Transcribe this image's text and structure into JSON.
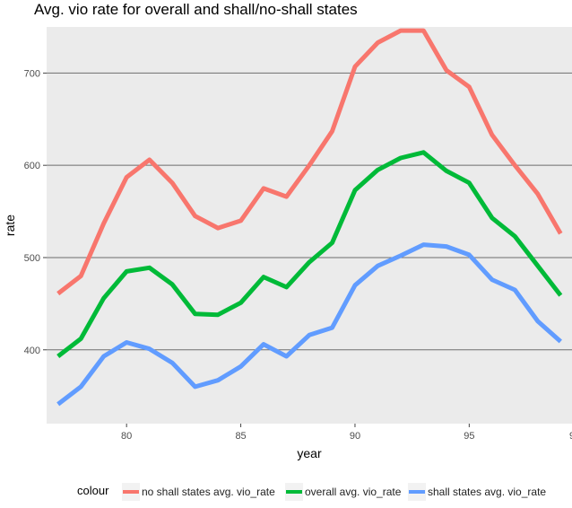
{
  "chart_data": {
    "type": "line",
    "title": "Avg. vio rate for overall and shall/no-shall states",
    "xlabel": "year",
    "ylabel": "rate",
    "xlim": [
      76.5,
      99.5
    ],
    "ylim": [
      320,
      750
    ],
    "x_ticks": [
      80,
      85,
      90,
      95
    ],
    "x_tick_labels": [
      "80",
      "85",
      "90",
      "95"
    ],
    "x_tick_partial": "9",
    "y_ticks": [
      400,
      500,
      600,
      700
    ],
    "y_tick_labels": [
      "400",
      "500",
      "600",
      "700"
    ],
    "grid": true,
    "legend_position": "bottom",
    "legend_title": "colour",
    "x": [
      77,
      78,
      79,
      80,
      81,
      82,
      83,
      84,
      85,
      86,
      87,
      88,
      89,
      90,
      91,
      92,
      93,
      94,
      95,
      96,
      97,
      98,
      99
    ],
    "series": [
      {
        "name": "no shall states avg. vio_rate",
        "color": "#f8766d",
        "values": [
          461,
          480,
          537,
          587,
          606,
          581,
          545,
          532,
          540,
          575,
          566,
          600,
          637,
          707,
          733,
          746,
          746,
          703,
          685,
          633,
          600,
          569,
          526
        ]
      },
      {
        "name": "overall avg. vio_rate",
        "color": "#00ba38",
        "values": [
          393,
          412,
          456,
          485,
          489,
          471,
          439,
          438,
          451,
          479,
          468,
          495,
          516,
          573,
          595,
          608,
          614,
          594,
          581,
          543,
          523,
          491,
          459
        ]
      },
      {
        "name": "shall states avg. vio_rate",
        "color": "#619cff",
        "values": [
          341,
          360,
          393,
          408,
          401,
          386,
          360,
          367,
          382,
          406,
          393,
          416,
          424,
          470,
          491,
          502,
          514,
          512,
          503,
          476,
          465,
          431,
          409
        ]
      }
    ]
  }
}
